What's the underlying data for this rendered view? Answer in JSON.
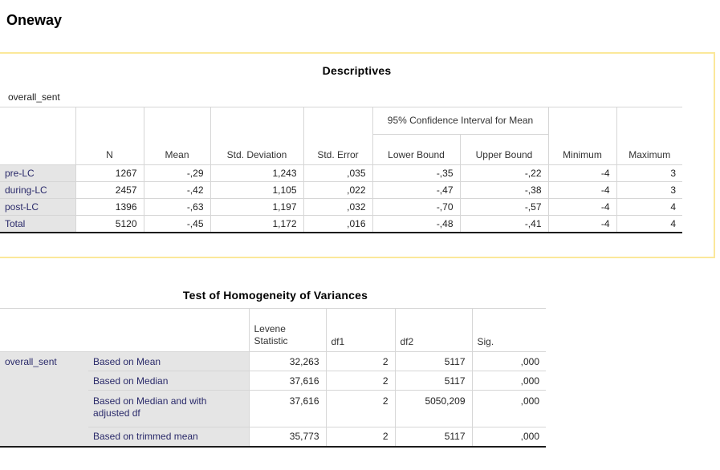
{
  "page": {
    "heading": "Oneway"
  },
  "descriptives": {
    "title": "Descriptives",
    "variable": "overall_sent",
    "ci_header": "95% Confidence Interval for Mean",
    "columns": [
      "N",
      "Mean",
      "Std. Deviation",
      "Std. Error",
      "Lower Bound",
      "Upper Bound",
      "Minimum",
      "Maximum"
    ],
    "rows": [
      {
        "label": "pre-LC",
        "values": [
          "1267",
          "-,29",
          "1,243",
          ",035",
          "-,35",
          "-,22",
          "-4",
          "3"
        ]
      },
      {
        "label": "during-LC",
        "values": [
          "2457",
          "-,42",
          "1,105",
          ",022",
          "-,47",
          "-,38",
          "-4",
          "3"
        ]
      },
      {
        "label": "post-LC",
        "values": [
          "1396",
          "-,63",
          "1,197",
          ",032",
          "-,70",
          "-,57",
          "-4",
          "4"
        ]
      },
      {
        "label": "Total",
        "values": [
          "5120",
          "-,45",
          "1,172",
          ",016",
          "-,48",
          "-,41",
          "-4",
          "4"
        ]
      }
    ]
  },
  "homogeneity": {
    "title": "Test of Homogeneity of Variances",
    "columns": [
      "Levene Statistic",
      "df1",
      "df2",
      "Sig."
    ],
    "variable": "overall_sent",
    "rows": [
      {
        "label": "Based on Mean",
        "values": [
          "32,263",
          "2",
          "5117",
          ",000"
        ]
      },
      {
        "label": "Based on Median",
        "values": [
          "37,616",
          "2",
          "5117",
          ",000"
        ]
      },
      {
        "label": "Based on Median and with adjusted df",
        "values": [
          "37,616",
          "2",
          "5050,209",
          ",000"
        ]
      },
      {
        "label": "Based on trimmed mean",
        "values": [
          "35,773",
          "2",
          "5117",
          ",000"
        ]
      }
    ]
  }
}
